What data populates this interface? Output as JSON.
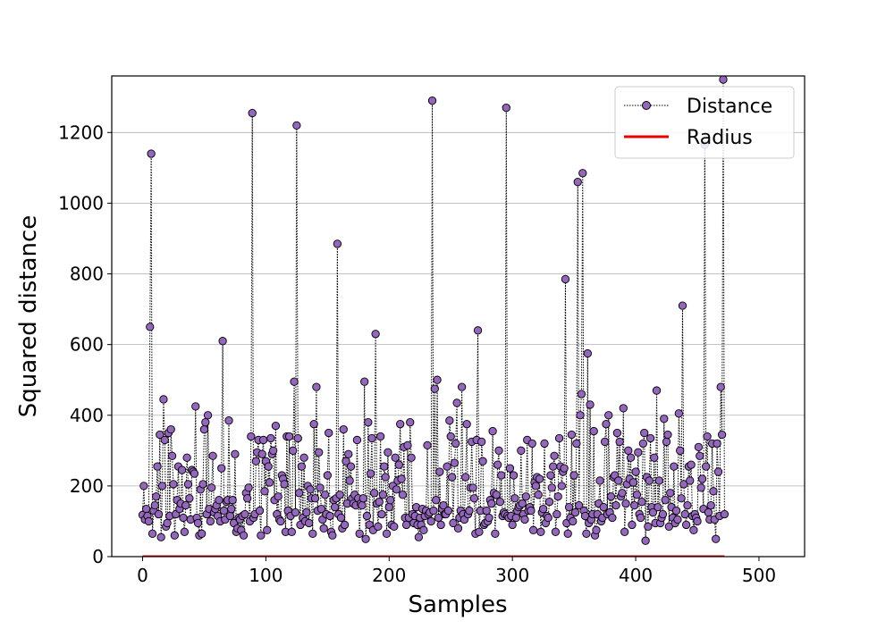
{
  "chart_data": {
    "type": "line",
    "title": "",
    "xlabel": "Samples",
    "ylabel": "Squared distance",
    "xlim": [
      -25,
      537
    ],
    "ylim": [
      0,
      1360
    ],
    "x_ticks": [
      0,
      100,
      200,
      300,
      400,
      500
    ],
    "y_ticks": [
      0,
      200,
      400,
      600,
      800,
      1000,
      1200
    ],
    "grid": "horizontal",
    "legend_position": "top-right",
    "series": [
      {
        "name": "Distance",
        "style": "dotted line with circle markers",
        "color": "#000000",
        "marker_face": "#9467bd",
        "x_start": 0,
        "values": [
          118,
          200,
          105,
          135,
          115,
          100,
          650,
          1140,
          65,
          130,
          145,
          170,
          255,
          120,
          345,
          55,
          200,
          445,
          330,
          85,
          95,
          350,
          115,
          360,
          285,
          205,
          60,
          120,
          160,
          255,
          135,
          150,
          245,
          110,
          70,
          145,
          280,
          205,
          165,
          105,
          245,
          240,
          235,
          425,
          110,
          95,
          60,
          190,
          65,
          205,
          360,
          380,
          120,
          400,
          135,
          100,
          195,
          285,
          125,
          135,
          145,
          115,
          160,
          100,
          250,
          610,
          130,
          105,
          155,
          160,
          385,
          115,
          135,
          160,
          95,
          290,
          70,
          80,
          110,
          105,
          75,
          115,
          60,
          120,
          180,
          165,
          195,
          100,
          340,
          1255,
          110,
          120,
          270,
          295,
          330,
          130,
          60,
          290,
          330,
          185,
          270,
          75,
          255,
          210,
          335,
          290,
          300,
          160,
          370,
          120,
          170,
          105,
          100,
          230,
          220,
          205,
          70,
          340,
          130,
          340,
          115,
          70,
          300,
          495,
          125,
          1220,
          335,
          180,
          90,
          255,
          110,
          280,
          100,
          125,
          200,
          95,
          190,
          165,
          65,
          375,
          165,
          480,
          130,
          295,
          195,
          135,
          105,
          80,
          175,
          120,
          230,
          350,
          115,
          70,
          60,
          160,
          140,
          165,
          885,
          120,
          175,
          110,
          80,
          360,
          90,
          270,
          150,
          290,
          215,
          255,
          165,
          150,
          175,
          145,
          330,
          165,
          65,
          150,
          145,
          165,
          495,
          50,
          115,
          380,
          90,
          235,
          335,
          75,
          180,
          630,
          150,
          85,
          155,
          340,
          120,
          175,
          255,
          225,
          65,
          295,
          140,
          160,
          90,
          200,
          85,
          280,
          190,
          215,
          260,
          375,
          220,
          175,
          310,
          110,
          90,
          315,
          110,
          380,
          280,
          120,
          95,
          115,
          140,
          90,
          55,
          110,
          90,
          135,
          75,
          115,
          130,
          315,
          120,
          125,
          100,
          1290,
          130,
          475,
          160,
          500,
          110,
          240,
          90,
          135,
          145,
          120,
          120,
          255,
          130,
          385,
          340,
          225,
          95,
          265,
          320,
          435,
          80,
          110,
          130,
          480,
          120,
          105,
          225,
          375,
          120,
          130,
          195,
          325,
          195,
          165,
          65,
          330,
          640,
          70,
          130,
          325,
          270,
          90,
          95,
          130,
          100,
          110,
          160,
          150,
          355,
          180,
          65,
          175,
          260,
          300,
          155,
          230,
          115,
          125,
          120,
          1270,
          115,
          110,
          250,
          115,
          90,
          230,
          165,
          110,
          130,
          140,
          145,
          300,
          150,
          120,
          105,
          170,
          330,
          130,
          140,
          130,
          320,
          75,
          210,
          200,
          225,
          175,
          220,
          70,
          125,
          135,
          320,
          95,
          115,
          110,
          155,
          230,
          195,
          255,
          285,
          70,
          120,
          170,
          335,
          255,
          200,
          240,
          250,
          785,
          95,
          65,
          140,
          110,
          345,
          100,
          230,
          125,
          320,
          1060,
          145,
          400,
          460,
          1085,
          130,
          115,
          65,
          575,
          95,
          430,
          105,
          120,
          355,
          60,
          75,
          120,
          150,
          215,
          100,
          110,
          140,
          325,
          375,
          120,
          400,
          125,
          170,
          110,
          225,
          230,
          145,
          350,
          215,
          325,
          170,
          180,
          420,
          70,
          150,
          205,
          300,
          220,
          280,
          90,
          210,
          145,
          240,
          175,
          295,
          120,
          110,
          155,
          320,
          350,
          45,
          225,
          85,
          215,
          335,
          140,
          125,
          280,
          95,
          470,
          140,
          215,
          95,
          110,
          120,
          390,
          160,
          325,
          345,
          85,
          180,
          140,
          110,
          255,
          95,
          130,
          105,
          405,
          300,
          165,
          710,
          205,
          120,
          90,
          145,
          255,
          215,
          260,
          115,
          75,
          120,
          110,
          100,
          310,
          285,
          195,
          220,
          135,
          1165,
          255,
          340,
          125,
          105,
          145,
          320,
          185,
          105,
          50,
          320,
          240,
          115,
          480,
          345,
          1350,
          120
        ]
      },
      {
        "name": "Radius",
        "style": "solid line",
        "color": "#e60000",
        "value": 0
      }
    ]
  }
}
